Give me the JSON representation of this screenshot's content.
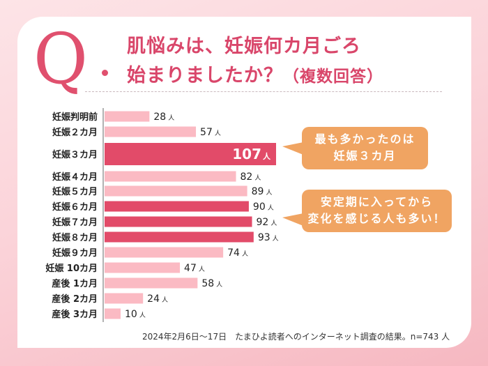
{
  "header": {
    "q_letter": "Q",
    "title_line1": "肌悩みは、妊娠何カ月ごろ",
    "title_line2": "始まりましたか？",
    "title_sub": "（複数回答）"
  },
  "callouts": [
    {
      "line1": "最も多かったのは",
      "line2": "妊娠３カ月"
    },
    {
      "line1": "安定期に入ってから",
      "line2": "変化を感じる人も多い！"
    }
  ],
  "footnote": "2024年2月6日〜17日　たまひよ読者へのインターネット調査の結果。n=743 人",
  "colors": {
    "accent": "#e0506e",
    "bar_light": "#fbbac3",
    "bar_dark": "#e24b69",
    "callout": "#f0a462"
  },
  "chart_data": {
    "type": "bar",
    "orientation": "horizontal",
    "title": "肌悩みは、妊娠何カ月ごろ始まりましたか？（複数回答）",
    "unit": "人",
    "categories": [
      "妊娠判明前",
      "妊娠２カ月",
      "妊娠３カ月",
      "妊娠４カ月",
      "妊娠５カ月",
      "妊娠６カ月",
      "妊娠７カ月",
      "妊娠８カ月",
      "妊娠９カ月",
      "妊娠 10カ月",
      "産後 1カ月",
      "産後 2カ月",
      "産後 3カ月"
    ],
    "values": [
      28,
      57,
      107,
      82,
      89,
      90,
      92,
      93,
      74,
      47,
      58,
      24,
      10
    ],
    "highlighted": [
      false,
      false,
      true,
      false,
      false,
      true,
      true,
      true,
      false,
      false,
      false,
      false,
      false
    ],
    "xlim": [
      0,
      107
    ],
    "grid": false,
    "legend": "none",
    "n": 743
  }
}
